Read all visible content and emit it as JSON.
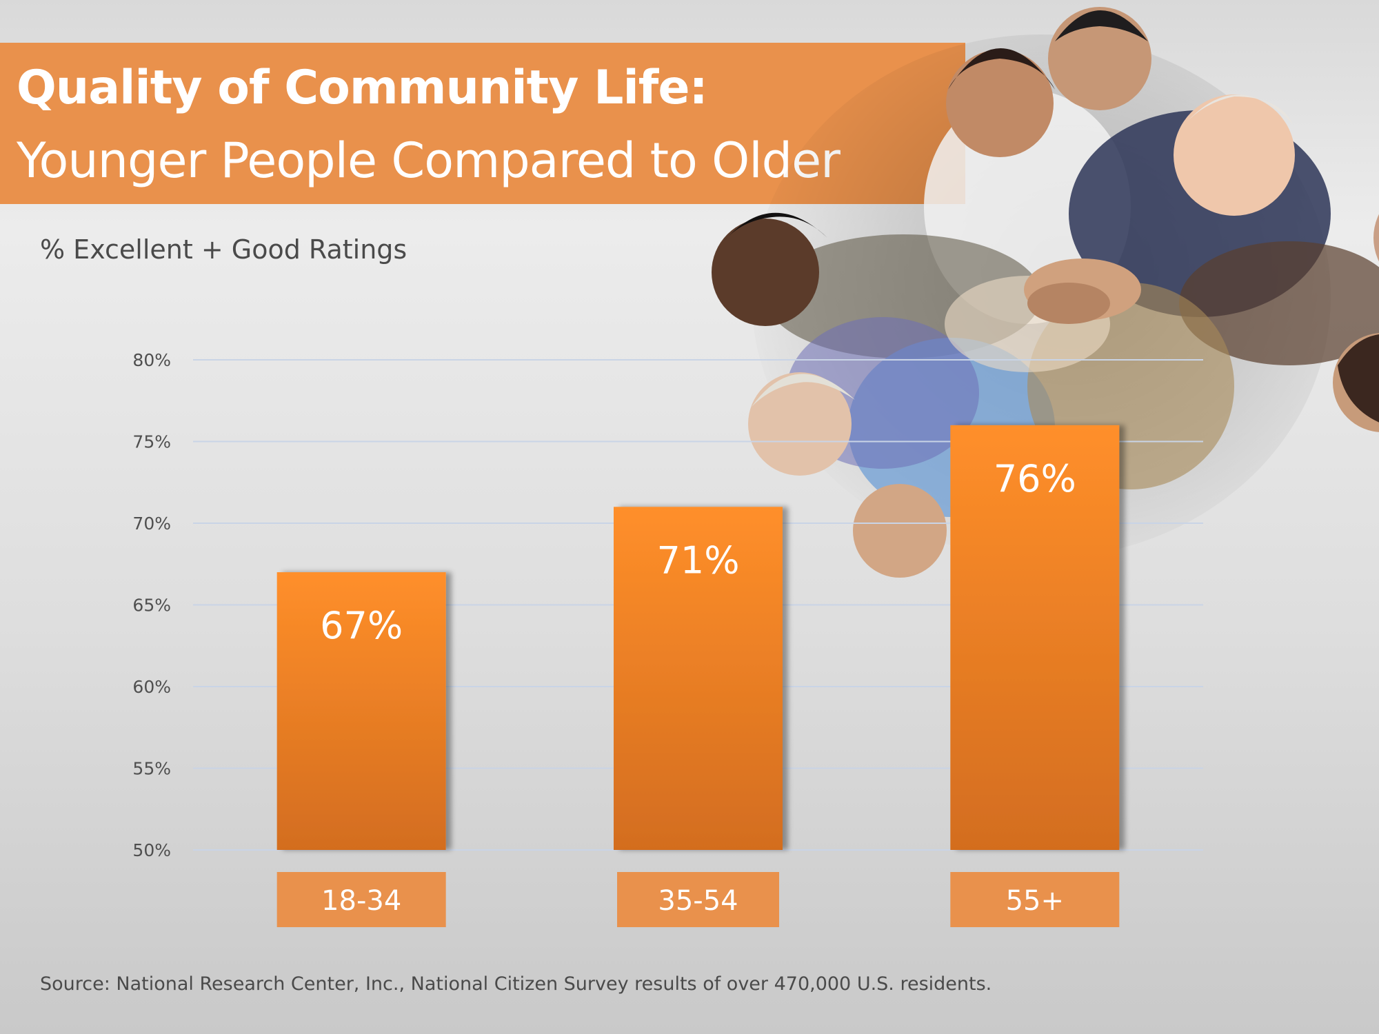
{
  "slide": {
    "title_line1": "Quality of Community Life:",
    "title_line2": "Younger People  Compared to Older",
    "subtitle": "% Excellent + Good Ratings",
    "source": "Source: National Research Center, Inc., National Citizen Survey results of over 470,000 U.S. residents.",
    "photo_icon": "group-of-people-photo"
  },
  "colors": {
    "accent": "#e9914c",
    "bar_top": "#ff8f2a",
    "bar_bottom": "#d36d1f",
    "gridline": "#c9d4e6",
    "text": "#4a4a4a"
  },
  "chart_data": {
    "type": "bar",
    "categories": [
      "18-34",
      "35-54",
      "55+"
    ],
    "values": [
      67,
      71,
      76
    ],
    "value_labels": [
      "67%",
      "71%",
      "76%"
    ],
    "ylim": [
      50,
      80
    ],
    "y_ticks": [
      50,
      55,
      60,
      65,
      70,
      75,
      80
    ],
    "y_tick_labels": [
      "50%",
      "55%",
      "60%",
      "65%",
      "70%",
      "75%",
      "80%"
    ],
    "grid": true,
    "legend": "none",
    "xlabel": "",
    "ylabel": ""
  }
}
